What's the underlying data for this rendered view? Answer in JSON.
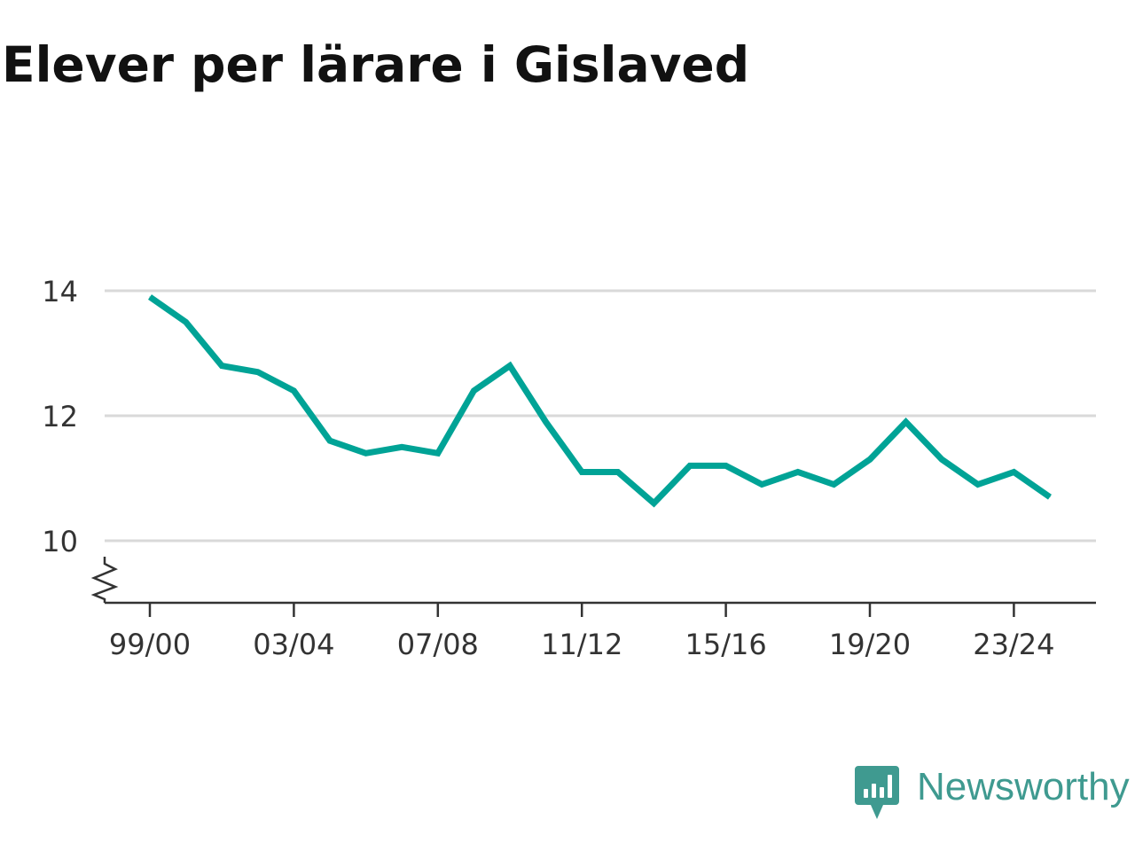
{
  "brand": {
    "name": "Newsworthy",
    "color": "#3f9a90",
    "logo_icon": "chart-speech-bubble-icon"
  },
  "chart_data": {
    "type": "line",
    "title": "Elever per lärare i Gislaved",
    "xlabel": "",
    "ylabel": "",
    "x": [
      "99/00",
      "00/01",
      "01/02",
      "02/03",
      "03/04",
      "04/05",
      "05/06",
      "06/07",
      "07/08",
      "08/09",
      "09/10",
      "10/11",
      "11/12",
      "12/13",
      "13/14",
      "14/15",
      "15/16",
      "16/17",
      "17/18",
      "18/19",
      "19/20",
      "20/21",
      "21/22",
      "22/23",
      "23/24",
      "24/25"
    ],
    "x_tick_labels": [
      "99/00",
      "03/04",
      "07/08",
      "11/12",
      "15/16",
      "19/20",
      "23/24"
    ],
    "series": [
      {
        "values": [
          13.9,
          13.5,
          12.8,
          12.7,
          12.4,
          11.6,
          11.4,
          11.5,
          11.4,
          12.4,
          12.8,
          11.9,
          11.1,
          11.1,
          10.6,
          11.2,
          11.2,
          10.9,
          11.1,
          10.9,
          11.3,
          11.9,
          11.3,
          10.9,
          11.1,
          10.7
        ],
        "color": "#00a396"
      }
    ],
    "y_ticks": [
      10,
      12,
      14
    ],
    "ylim": [
      9,
      14
    ],
    "y_axis_break": true,
    "grid": true,
    "grid_color": "#d9d9d9",
    "axis_color": "#333333"
  }
}
